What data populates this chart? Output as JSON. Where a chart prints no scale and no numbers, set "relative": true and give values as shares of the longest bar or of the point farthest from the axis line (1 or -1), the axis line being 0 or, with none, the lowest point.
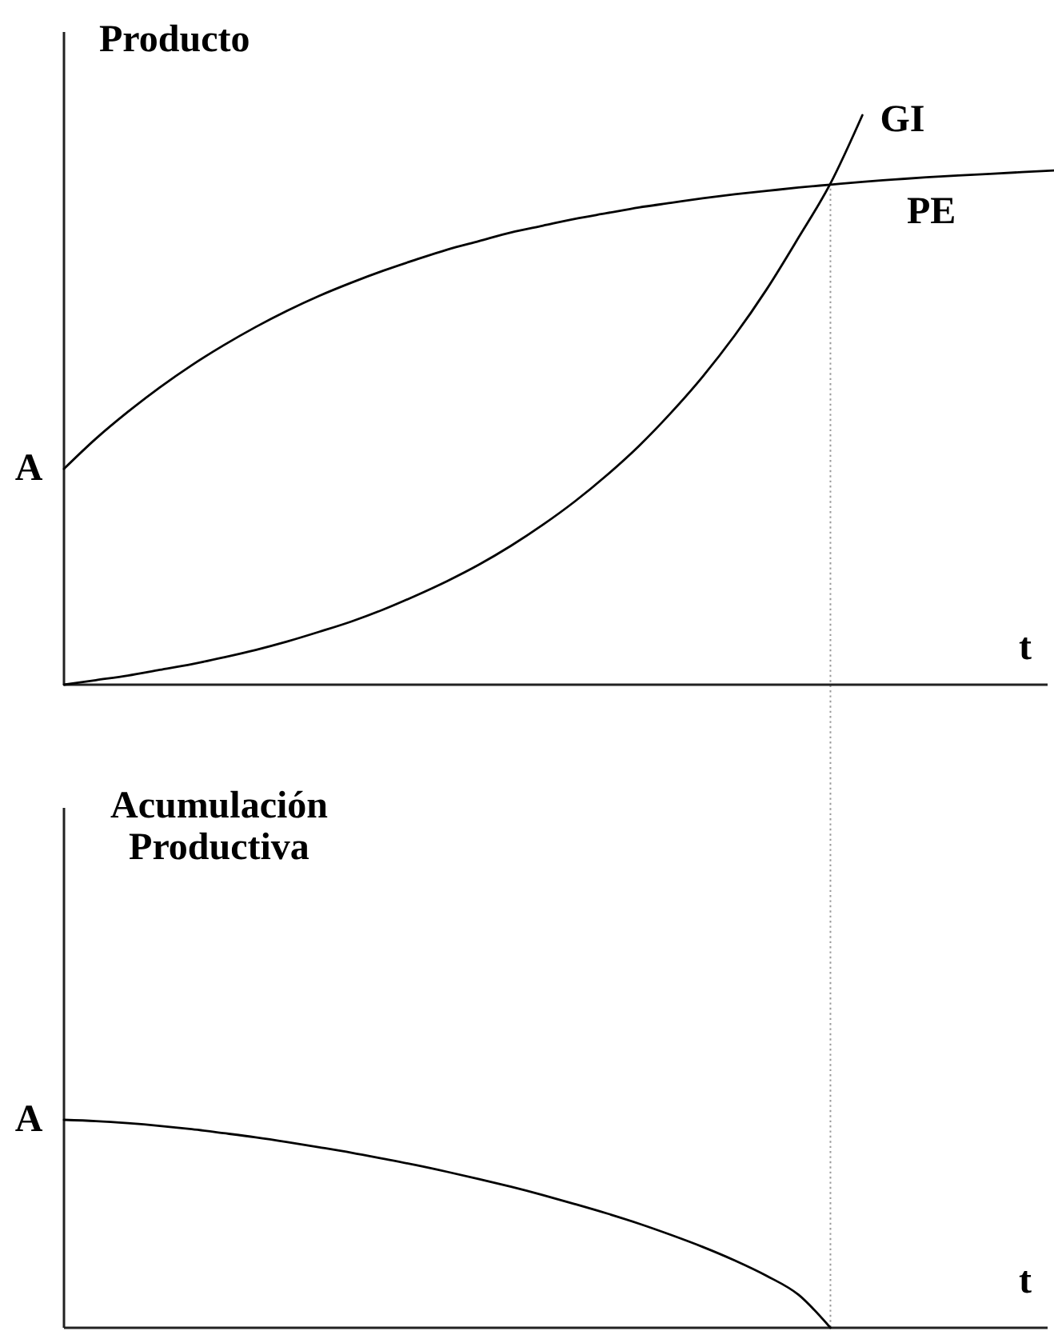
{
  "chart_data": [
    {
      "type": "line",
      "ylabel": "Producto",
      "xlabel": "t",
      "relative": true,
      "categories": [
        null,
        null,
        null,
        null,
        null,
        null,
        null,
        null,
        null,
        null,
        null,
        null,
        null,
        null,
        null,
        null,
        null,
        null,
        null,
        null,
        null,
        null,
        null,
        null,
        null,
        null,
        null,
        null,
        null,
        null,
        null,
        null
      ],
      "series": [
        {
          "name": "GI",
          "color": "#000000",
          "values": [
            0,
            0.008,
            0.016,
            0.026,
            0.036,
            0.048,
            0.061,
            0.076,
            0.093,
            0.111,
            0.132,
            0.156,
            0.182,
            0.211,
            0.244,
            0.281,
            0.322,
            0.368,
            0.419,
            0.477,
            0.541,
            0.613,
            0.694,
            0.785,
            0.88,
            1,
            null,
            null,
            null,
            null,
            null,
            null
          ]
        },
        {
          "name": "PE",
          "color": "#000000",
          "values": [
            0.379,
            0.432,
            0.479,
            0.522,
            0.561,
            0.596,
            0.628,
            0.657,
            0.683,
            0.706,
            0.727,
            0.746,
            0.764,
            0.779,
            0.794,
            0.806,
            0.818,
            0.828,
            0.838,
            0.846,
            0.854,
            0.861,
            0.867,
            0.873,
            0.878,
            0.883,
            0.887,
            0.891,
            0.894,
            0.897,
            0.9,
            0.903
          ]
        }
      ],
      "annotations": [
        "A"
      ]
    },
    {
      "type": "line",
      "ylabel": "Acumulación\nProductiva",
      "xlabel": "t",
      "relative": true,
      "categories": [
        null,
        null,
        null,
        null,
        null,
        null,
        null,
        null,
        null,
        null,
        null,
        null,
        null,
        null,
        null,
        null,
        null,
        null,
        null,
        null,
        null,
        null,
        null,
        null,
        null,
        null,
        null,
        null,
        null,
        null,
        null,
        null
      ],
      "series": [
        {
          "color": "#000000",
          "values": [
            1,
            0.994,
            0.984,
            0.971,
            0.955,
            0.936,
            0.916,
            0.893,
            0.868,
            0.842,
            0.813,
            0.783,
            0.75,
            0.715,
            0.678,
            0.638,
            0.595,
            0.55,
            0.501,
            0.447,
            0.389,
            0.324,
            0.25,
            0.159,
            0,
            null,
            null,
            null,
            null,
            null,
            null,
            null
          ]
        }
      ],
      "annotations": [
        "A"
      ]
    }
  ]
}
